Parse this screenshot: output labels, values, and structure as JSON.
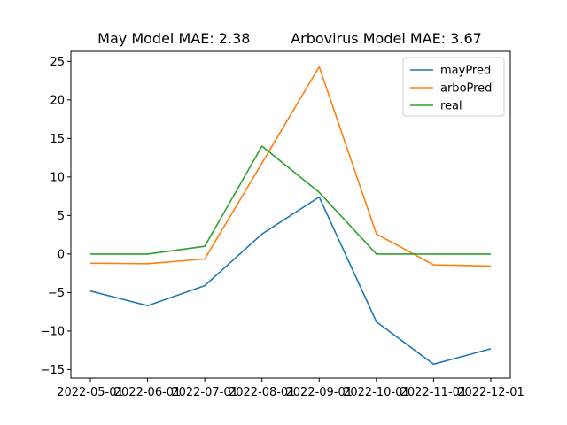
{
  "chart_data": {
    "type": "line",
    "title": "May Model MAE: 2.38         Arbovirus Model MAE: 3.67",
    "xlabel": "",
    "ylabel": "",
    "x": [
      "2022-05-01",
      "2022-06-01",
      "2022-07-01",
      "2022-08-01",
      "2022-09-01",
      "2022-10-01",
      "2022-11-01",
      "2022-12-01"
    ],
    "ylim": [
      -16.1,
      26.3
    ],
    "yticks": [
      -15,
      -10,
      -5,
      0,
      5,
      10,
      15,
      20,
      25
    ],
    "grid": false,
    "legend_position": "top-right",
    "series": [
      {
        "name": "mayPred",
        "color": "#1f77b4",
        "values": [
          -4.8,
          -6.7,
          -4.1,
          2.6,
          7.4,
          -8.8,
          -14.3,
          -12.3
        ]
      },
      {
        "name": "arboPred",
        "color": "#ff7f0e",
        "values": [
          -1.2,
          -1.25,
          -0.65,
          11.8,
          24.3,
          2.6,
          -1.4,
          -1.55
        ]
      },
      {
        "name": "real",
        "color": "#2ca02c",
        "values": [
          0,
          0,
          1,
          14,
          8,
          0,
          0,
          0
        ]
      }
    ]
  }
}
